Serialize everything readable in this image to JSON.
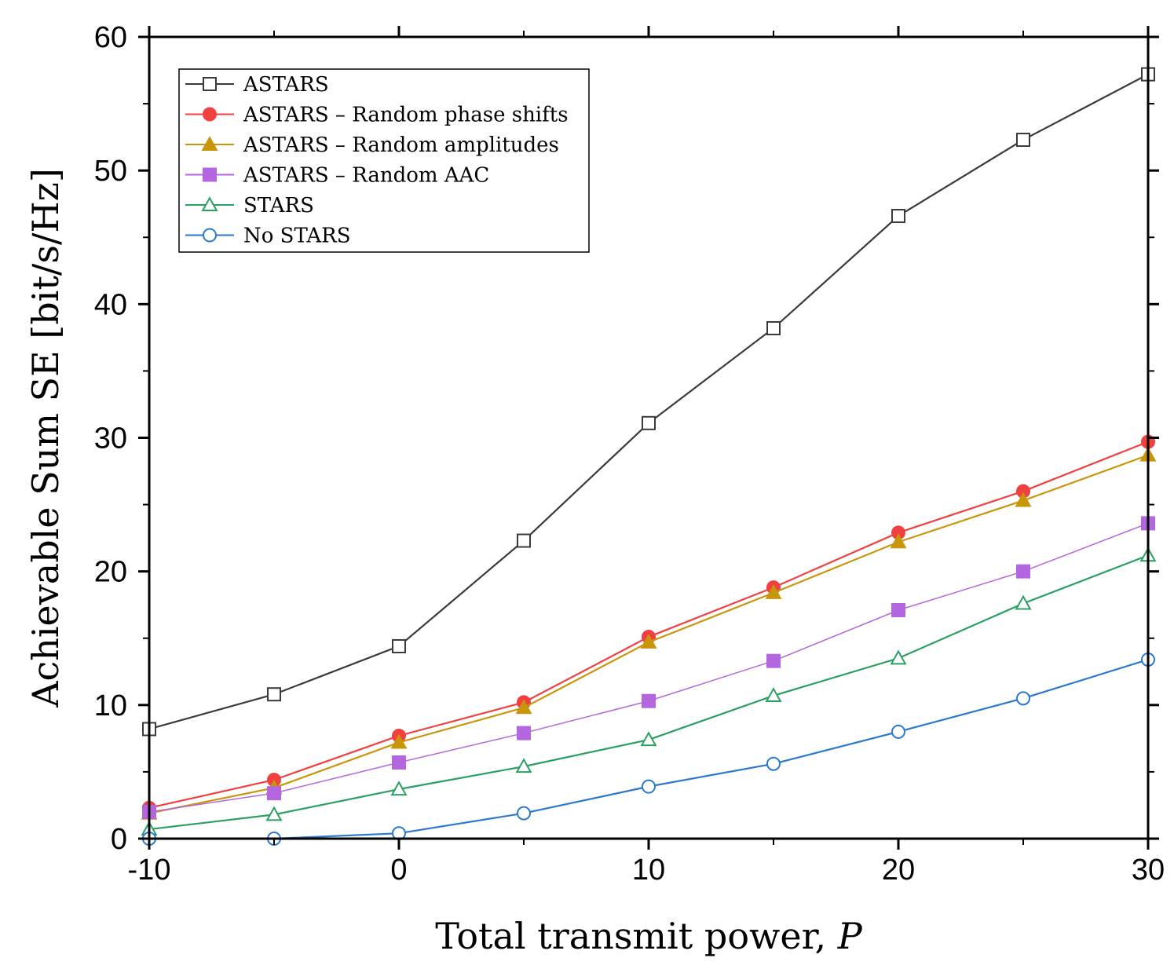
{
  "chart_data": {
    "type": "line",
    "title": "",
    "xlabel": "Total transmit power, ",
    "xlabel_var": "P",
    "ylabel": "Achievable Sum SE [bit/s/Hz]",
    "xlim": [
      -10,
      30
    ],
    "ylim": [
      0,
      60
    ],
    "x_ticks": [
      -10,
      0,
      10,
      20,
      30
    ],
    "y_ticks": [
      0,
      10,
      20,
      30,
      40,
      50,
      60
    ],
    "x": [
      -10,
      -5,
      0,
      5,
      10,
      15,
      20,
      25,
      30
    ],
    "legend_position": "top-left",
    "series": [
      {
        "name": "ASTARS",
        "color": "#3a3a3a",
        "marker": "square-open",
        "values": [
          8.2,
          10.8,
          14.4,
          22.3,
          31.1,
          38.2,
          46.6,
          52.3,
          57.2
        ]
      },
      {
        "name": "ASTARS – Random phase shifts",
        "color": "#f04040",
        "marker": "circle-filled",
        "values": [
          2.3,
          4.4,
          7.7,
          10.2,
          15.1,
          18.8,
          22.9,
          26.0,
          29.7
        ]
      },
      {
        "name": "ASTARS – Random amplitudes",
        "color": "#c9960b",
        "marker": "triangle-filled",
        "values": [
          1.9,
          3.8,
          7.2,
          9.8,
          14.7,
          18.4,
          22.2,
          25.3,
          28.7
        ]
      },
      {
        "name": "ASTARS – Random AAC",
        "color": "#b466e0",
        "marker": "square-filled",
        "values": [
          2.0,
          3.4,
          5.7,
          7.9,
          10.3,
          13.3,
          17.1,
          20.0,
          23.6
        ]
      },
      {
        "name": "STARS",
        "color": "#2aa060",
        "marker": "triangle-open",
        "values": [
          0.7,
          1.8,
          3.7,
          5.4,
          7.4,
          10.7,
          13.5,
          17.6,
          21.2
        ]
      },
      {
        "name": "No STARS",
        "color": "#2a78d0",
        "marker": "circle-open",
        "values": [
          0.0,
          0.0,
          0.4,
          1.9,
          3.9,
          5.6,
          8.0,
          10.5,
          13.4
        ]
      }
    ]
  }
}
